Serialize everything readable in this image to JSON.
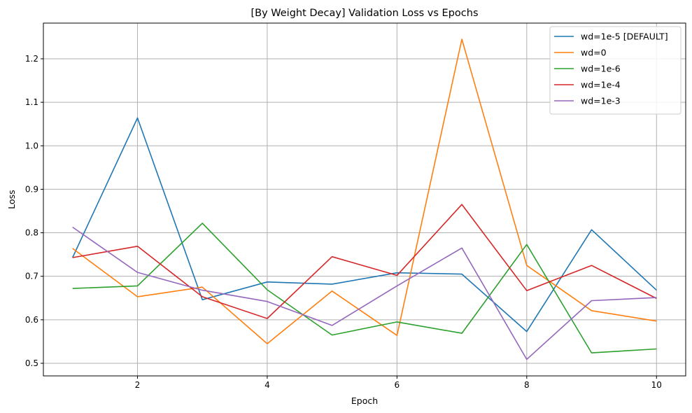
{
  "chart_data": {
    "type": "line",
    "title": "[By Weight Decay] Validation Loss vs Epochs",
    "xlabel": "Epoch",
    "ylabel": "Loss",
    "xlim": [
      0.55,
      10.45
    ],
    "ylim": [
      0.471,
      1.282
    ],
    "xticks": [
      2,
      4,
      6,
      8,
      10
    ],
    "yticks": [
      0.5,
      0.6,
      0.7,
      0.8,
      0.9,
      1.0,
      1.1,
      1.2
    ],
    "ytick_labels": [
      "0.5",
      "0.6",
      "0.7",
      "0.8",
      "0.9",
      "1.0",
      "1.1",
      "1.2"
    ],
    "grid": true,
    "legend_position": "top-right",
    "x": [
      1,
      2,
      3,
      4,
      5,
      6,
      7,
      8,
      9,
      10
    ],
    "series": [
      {
        "name": "wd=1e-5 [DEFAULT]",
        "color": "#1f77b4",
        "values": [
          0.743,
          1.064,
          0.646,
          0.687,
          0.682,
          0.708,
          0.705,
          0.573,
          0.807,
          0.668
        ]
      },
      {
        "name": "wd=0",
        "color": "#ff7f0e",
        "values": [
          0.764,
          0.653,
          0.675,
          0.545,
          0.666,
          0.564,
          1.245,
          0.725,
          0.621,
          0.597
        ]
      },
      {
        "name": "wd=1e-6",
        "color": "#2ca02c",
        "values": [
          0.672,
          0.678,
          0.822,
          0.669,
          0.565,
          0.595,
          0.569,
          0.773,
          0.524,
          0.533
        ]
      },
      {
        "name": "wd=1e-4",
        "color": "#d62728",
        "values": [
          0.743,
          0.769,
          0.653,
          0.603,
          0.745,
          0.702,
          0.865,
          0.667,
          0.725,
          0.649
        ]
      },
      {
        "name": "wd=1e-3",
        "color": "#9467bd",
        "values": [
          0.813,
          0.709,
          0.668,
          0.642,
          0.587,
          0.678,
          0.765,
          0.509,
          0.644,
          0.651
        ]
      }
    ]
  }
}
